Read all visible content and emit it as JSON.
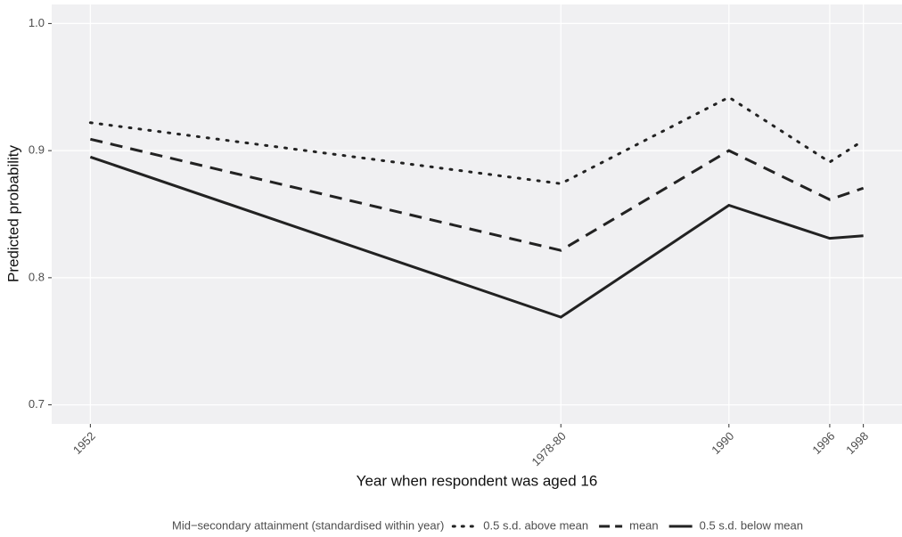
{
  "chart_data": {
    "type": "line",
    "x_label": "Year when respondent was aged 16",
    "y_label": "Predicted probability",
    "x": [
      1952,
      1980,
      1990,
      1996,
      1998
    ],
    "xlim": [
      1949.7,
      2000.3
    ],
    "xticks": [
      1952,
      {
        "value": 1980,
        "label": "1978-80"
      },
      1990,
      1996,
      1998
    ],
    "ylim": [
      0.685,
      1.015
    ],
    "yticks": [
      {
        "value": 1,
        "label": "1.0"
      },
      0.9,
      0.8,
      0.7
    ],
    "grid": true,
    "legend_title": "Mid−secondary attainment (standardised within year)",
    "legend_position": "bottom",
    "series": [
      {
        "name": "0.5 s.d. above mean",
        "color": "#222222",
        "linetype": "dotted",
        "values": [
          0.922,
          0.874,
          0.942,
          0.891,
          0.908
        ]
      },
      {
        "name": "mean",
        "color": "#222222",
        "linetype": "dashed",
        "values": [
          0.909,
          0.8215,
          0.9,
          0.8615,
          0.8705
        ]
      },
      {
        "name": "0.5 s.d. below mean",
        "color": "#222222",
        "linetype": "solid",
        "values": [
          0.895,
          0.769,
          0.857,
          0.831,
          0.833
        ]
      }
    ]
  }
}
